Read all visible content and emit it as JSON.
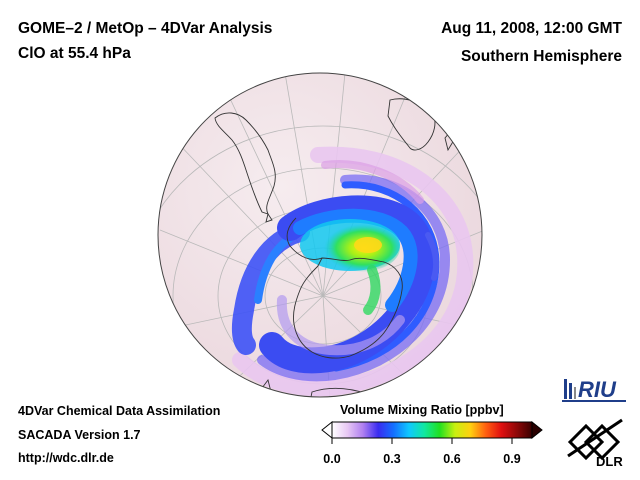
{
  "header": {
    "title_left": "GOME–2 / MetOp – 4DVar Analysis",
    "subtitle_left": "ClO at 55.4 hPa",
    "title_right": "Aug 11, 2008, 12:00 GMT",
    "subtitle_right": "Southern Hemisphere"
  },
  "footer": {
    "line1": "4DVar Chemical Data Assimilation",
    "line2": "SACADA Version 1.7",
    "line3": "http://wdc.dlr.de"
  },
  "colorbar": {
    "title": "Volume Mixing Ratio [ppbv]",
    "ticks": [
      "0.0",
      "0.3",
      "0.6",
      "0.9"
    ],
    "range": [
      0.0,
      1.0
    ],
    "colors": [
      "#ffffff",
      "#e8c8f4",
      "#b080f0",
      "#3a2cf0",
      "#1470ff",
      "#10c8ff",
      "#10e8a0",
      "#20e020",
      "#c8f010",
      "#ffd010",
      "#ff6010",
      "#e01010",
      "#900808",
      "#3a0000"
    ]
  },
  "logos": {
    "riu": "RIU",
    "dlr": "DLR"
  },
  "map": {
    "projection": "orthographic",
    "hemisphere": "south",
    "ocean_color": "#f3e6ea",
    "grid_color": "#b7b7b7",
    "coast_color": "#333333"
  }
}
